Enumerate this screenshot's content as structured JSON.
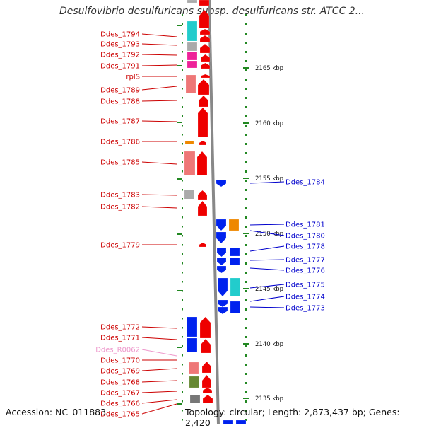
{
  "title": "Desulfovibrio desulfuricans subsp. desulfuricans str. ATCC 2...",
  "footer": {
    "accession": "Accession: NC_011883",
    "info": "Topology: circular; Length: 2,873,437 bp; Genes: 2,420"
  },
  "colors": {
    "left_label": "#cc0000",
    "right_label": "#0000cc",
    "rna_label": "#ee99cc",
    "red_gene": "#ee0000",
    "blue_gene": "#0022ee",
    "pink": "#ee7777",
    "gray": "#aaaaaa",
    "cyan": "#22cccc",
    "magenta": "#ee2299",
    "orange": "#ee8800",
    "olive": "#668833",
    "backbone": "#888888",
    "tick": "#228822"
  },
  "scale": {
    "unit": "kbp",
    "ticks": [
      2165,
      2160,
      2155,
      2150,
      2145,
      2140,
      2135
    ]
  },
  "tick_labels": [
    "2165 kbp",
    "2160 kbp",
    "2155 kbp",
    "2150 kbp",
    "2145 kbp",
    "2140 kbp",
    "2135 kbp"
  ],
  "left_labels": [
    "Ddes_1794",
    "Ddes_1793",
    "Ddes_1792",
    "Ddes_1791",
    "rplS",
    "Ddes_1789",
    "Ddes_1788",
    "Ddes_1787",
    "Ddes_1786",
    "Ddes_1785",
    "Ddes_1783",
    "Ddes_1782",
    "Ddes_1779",
    "Ddes_1772",
    "Ddes_1771",
    "Ddes_R0062",
    "Ddes_1770",
    "Ddes_1769",
    "Ddes_1768",
    "Ddes_1767",
    "Ddes_1766",
    "Ddes_1765"
  ],
  "right_labels": [
    "Ddes_1784",
    "Ddes_1781",
    "Ddes_1780",
    "Ddes_1778",
    "Ddes_1777",
    "Ddes_1776",
    "Ddes_1775",
    "Ddes_1774",
    "Ddes_1773"
  ]
}
